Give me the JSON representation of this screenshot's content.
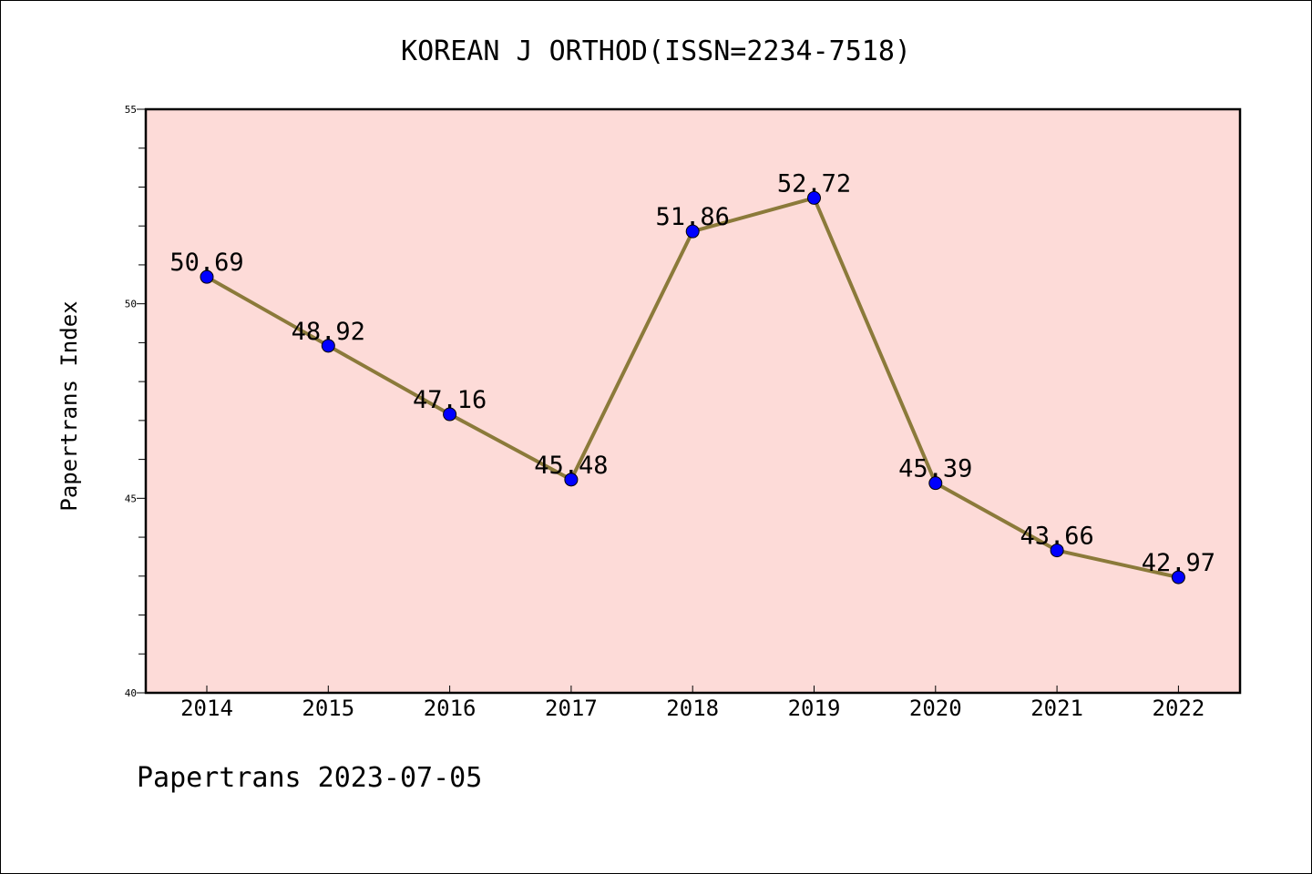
{
  "chart_data": {
    "type": "line",
    "title": "KOREAN J ORTHOD(ISSN=2234-7518)",
    "ylabel": "Papertrans Index",
    "xlabel": "",
    "categories": [
      "2014",
      "2015",
      "2016",
      "2017",
      "2018",
      "2019",
      "2020",
      "2021",
      "2022"
    ],
    "values": [
      50.69,
      48.92,
      47.16,
      45.48,
      51.86,
      52.72,
      45.39,
      43.66,
      42.97
    ],
    "data_labels": [
      "50.69",
      "48.92",
      "47.16",
      "45.48",
      "51.86",
      "52.72",
      "45.39",
      "43.66",
      "42.97"
    ],
    "ylim": [
      40,
      55
    ],
    "yticks": [
      "40",
      "45",
      "50",
      "55"
    ],
    "grid": false,
    "colors": {
      "plot_bg": "#fddbd8",
      "line": "#8b7a3a",
      "marker": "#0000ff"
    }
  },
  "footer": "Papertrans 2023-07-05"
}
